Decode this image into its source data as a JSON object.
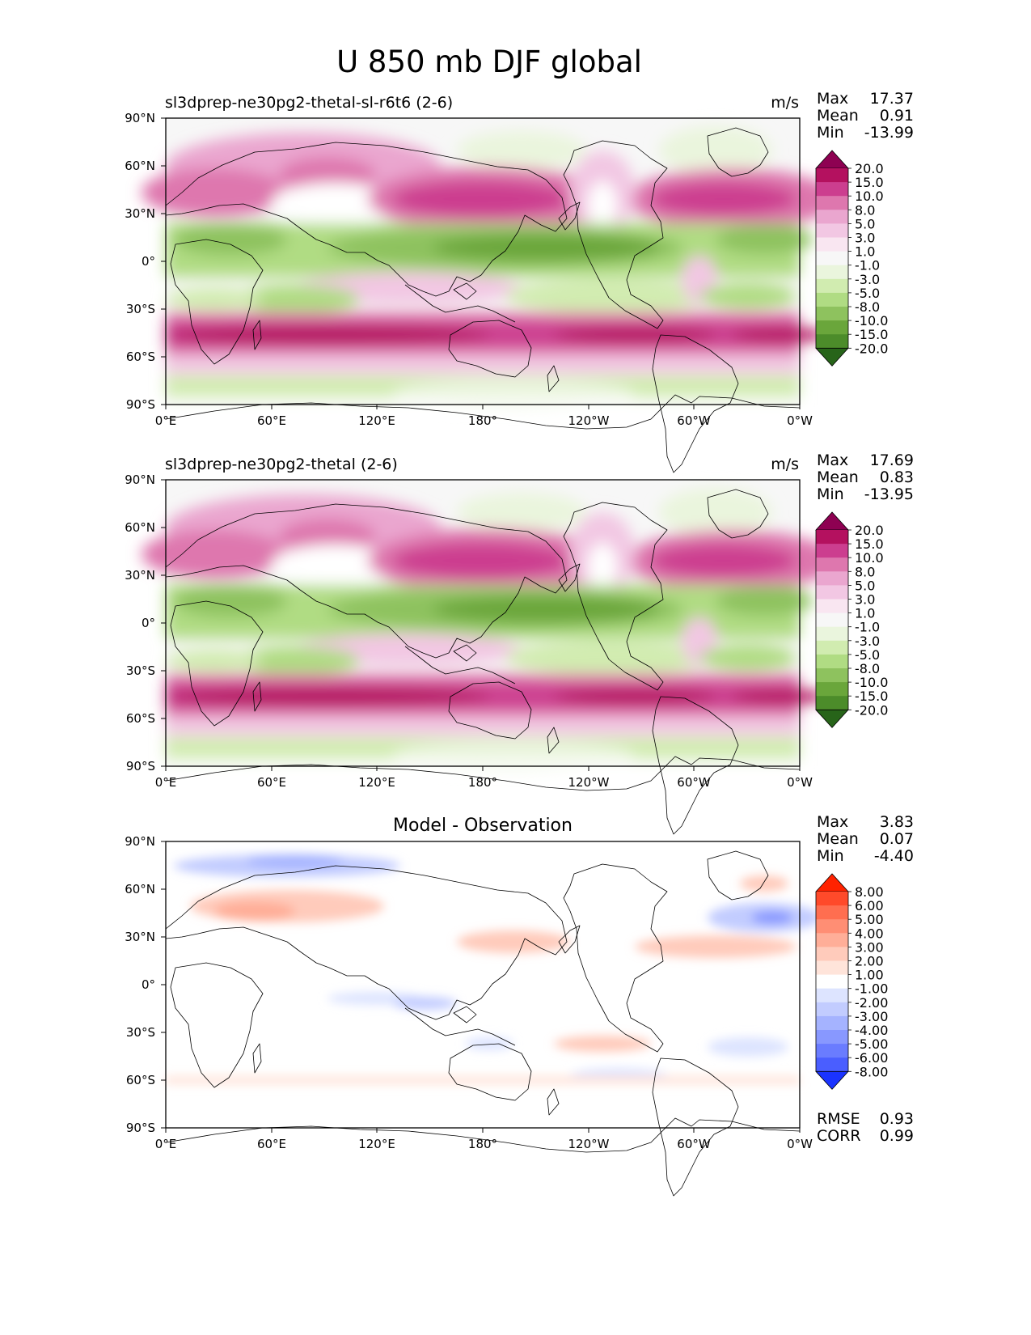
{
  "figure": {
    "title": "U 850 mb DJF global"
  },
  "axes": {
    "lat_ticks": [
      "90°N",
      "60°N",
      "30°N",
      "0°",
      "30°S",
      "60°S",
      "90°S"
    ],
    "lon_ticks": [
      "0°E",
      "60°E",
      "120°E",
      "180°",
      "120°W",
      "60°W",
      "0°W"
    ]
  },
  "panels": [
    {
      "title_left": "sl3dprep-ne30pg2-thetal-sl-r6t6 (2-6)",
      "title_center": "",
      "units": "m/s",
      "stats": {
        "max_label": "Max",
        "max": "17.37",
        "mean_label": "Mean",
        "mean": "0.91",
        "min_label": "Min",
        "min": "-13.99"
      },
      "colorbar": {
        "levels": [
          "20.0",
          "15.0",
          "10.0",
          "8.0",
          "5.0",
          "3.0",
          "1.0",
          "-1.0",
          "-3.0",
          "-5.0",
          "-8.0",
          "-10.0",
          "-15.0",
          "-20.0"
        ],
        "colors": [
          "#8e0152",
          "#b4115f",
          "#cc3e8f",
          "#de77ae",
          "#eaa6cf",
          "#f2c7e3",
          "#f9e6f1",
          "#f7f7f7",
          "#eaf5dd",
          "#d1ecb0",
          "#b0dc83",
          "#8ec25e",
          "#6aa63b",
          "#4c8c2a",
          "#276419"
        ]
      }
    },
    {
      "title_left": "sl3dprep-ne30pg2-thetal (2-6)",
      "title_center": "",
      "units": "m/s",
      "stats": {
        "max_label": "Max",
        "max": "17.69",
        "mean_label": "Mean",
        "mean": "0.83",
        "min_label": "Min",
        "min": "-13.95"
      },
      "colorbar": {
        "levels": [
          "20.0",
          "15.0",
          "10.0",
          "8.0",
          "5.0",
          "3.0",
          "1.0",
          "-1.0",
          "-3.0",
          "-5.0",
          "-8.0",
          "-10.0",
          "-15.0",
          "-20.0"
        ],
        "colors": [
          "#8e0152",
          "#b4115f",
          "#cc3e8f",
          "#de77ae",
          "#eaa6cf",
          "#f2c7e3",
          "#f9e6f1",
          "#f7f7f7",
          "#eaf5dd",
          "#d1ecb0",
          "#b0dc83",
          "#8ec25e",
          "#6aa63b",
          "#4c8c2a",
          "#276419"
        ]
      }
    },
    {
      "title_left": "",
      "title_center": "Model - Observation",
      "units": "",
      "stats": {
        "max_label": "Max",
        "max": "3.83",
        "mean_label": "Mean",
        "mean": "0.07",
        "min_label": "Min",
        "min": "-4.40"
      },
      "metrics": {
        "rmse_label": "RMSE",
        "rmse": "0.93",
        "corr_label": "CORR",
        "corr": "0.99"
      },
      "colorbar": {
        "levels": [
          "8.00",
          "6.00",
          "5.00",
          "4.00",
          "3.00",
          "2.00",
          "1.00",
          "-1.00",
          "-2.00",
          "-3.00",
          "-4.00",
          "-5.00",
          "-6.00",
          "-8.00"
        ],
        "colors": [
          "#ff2200",
          "#ff4a2a",
          "#ff6e50",
          "#ff8e74",
          "#ffae98",
          "#ffcbbb",
          "#ffe4da",
          "#ffffff",
          "#dde4ff",
          "#c2ccff",
          "#a5b3ff",
          "#8898ff",
          "#6a7cff",
          "#4a5eff",
          "#1a33ff"
        ]
      }
    }
  ],
  "colors": {
    "coastline": "#000000",
    "land_pink": "#f2c7e3",
    "ocean_green": "#b0dc83"
  }
}
